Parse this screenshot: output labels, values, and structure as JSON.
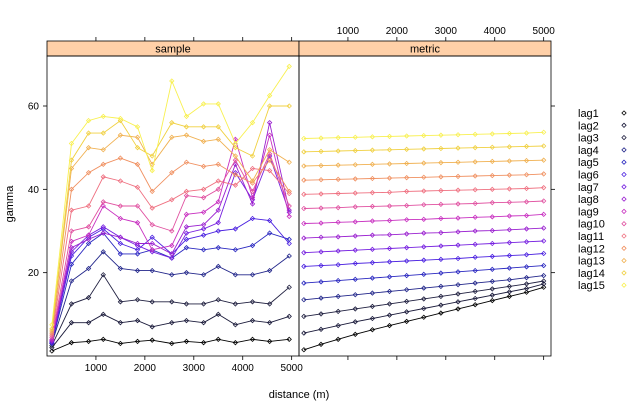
{
  "chart_data": {
    "type": "line",
    "xlabel": "distance (m)",
    "ylabel": "gamma",
    "x_ticks": [
      1000,
      2000,
      3000,
      4000,
      5000
    ],
    "y_ticks": [
      20,
      40,
      60
    ],
    "xlim": [
      0,
      5150
    ],
    "ylim": [
      0,
      72
    ],
    "legend_position": "right",
    "panels": [
      {
        "name": "sample",
        "x": [
          100,
          500,
          850,
          1150,
          1500,
          1850,
          2150,
          2550,
          2850,
          3200,
          3500,
          3850,
          4200,
          4550,
          4950
        ],
        "series": [
          {
            "name": "lag1",
            "color": "#000000",
            "values": [
              1.2,
              3.2,
              3.5,
              4.0,
              3.0,
              3.5,
              3.8,
              3.0,
              3.5,
              3.2,
              4.0,
              3.2,
              4.0,
              3.5,
              4.0
            ]
          },
          {
            "name": "lag2",
            "color": "#1a1a3a",
            "values": [
              2.0,
              8.0,
              8.0,
              10.0,
              8.0,
              8.5,
              7.0,
              8.0,
              8.5,
              8.0,
              10.0,
              7.5,
              8.5,
              8.0,
              9.5
            ]
          },
          {
            "name": "lag3",
            "color": "#202040",
            "values": [
              2.5,
              12.5,
              14.0,
              19.5,
              13.0,
              13.5,
              13.0,
              13.0,
              12.5,
              12.5,
              13.5,
              12.5,
              13.0,
              12.5,
              16.5
            ]
          },
          {
            "name": "lag4",
            "color": "#22268a",
            "values": [
              3.0,
              18.0,
              21.0,
              25.0,
              21.0,
              20.5,
              20.5,
              19.5,
              20.0,
              19.5,
              21.5,
              19.5,
              19.5,
              20.5,
              24.0
            ]
          },
          {
            "name": "lag5",
            "color": "#2a28c0",
            "values": [
              3.0,
              22.0,
              27.0,
              29.5,
              24.5,
              24.5,
              25.5,
              23.5,
              26.0,
              25.5,
              26.0,
              25.5,
              26.5,
              29.5,
              28.0
            ]
          },
          {
            "name": "lag6",
            "color": "#4a20e0",
            "values": [
              3.2,
              24.0,
              28.5,
              30.5,
              27.0,
              25.5,
              28.5,
              24.5,
              28.0,
              29.0,
              30.0,
              30.5,
              33.0,
              32.5,
              27.0
            ]
          },
          {
            "name": "lag7",
            "color": "#7620e0",
            "values": [
              3.5,
              25.0,
              29.0,
              31.0,
              28.5,
              26.5,
              25.0,
              23.5,
              29.5,
              30.5,
              32.0,
              44.0,
              37.5,
              48.0,
              34.5
            ]
          },
          {
            "name": "lag8",
            "color": "#9a20d0",
            "values": [
              3.7,
              26.0,
              28.0,
              29.5,
              28.5,
              27.0,
              27.0,
              24.5,
              31.0,
              31.5,
              35.0,
              46.0,
              36.5,
              56.0,
              35.0
            ]
          },
          {
            "name": "lag9",
            "color": "#c830c0",
            "values": [
              4.0,
              27.5,
              29.0,
              36.0,
              33.0,
              32.0,
              25.5,
              26.5,
              34.0,
              34.5,
              37.0,
              52.0,
              38.0,
              53.0,
              33.5
            ]
          },
          {
            "name": "lag10",
            "color": "#e050a0",
            "values": [
              4.5,
              30.0,
              31.0,
              37.0,
              36.0,
              36.0,
              31.5,
              30.0,
              38.5,
              38.0,
              40.0,
              47.0,
              39.5,
              48.5,
              36.0
            ]
          },
          {
            "name": "lag11",
            "color": "#ef7080",
            "values": [
              5.0,
              35.0,
              36.0,
              43.0,
              42.0,
              40.5,
              35.5,
              37.5,
              39.5,
              40.0,
              42.0,
              41.0,
              45.0,
              44.5,
              39.0
            ]
          },
          {
            "name": "lag12",
            "color": "#f09060",
            "values": [
              5.5,
              40.0,
              44.0,
              46.0,
              47.5,
              46.0,
              39.5,
              44.0,
              46.5,
              45.5,
              46.0,
              43.5,
              41.5,
              47.0,
              39.5
            ]
          },
          {
            "name": "lag13",
            "color": "#f0b050",
            "values": [
              6.0,
              45.0,
              50.0,
              49.5,
              53.0,
              52.5,
              46.0,
              52.5,
              53.0,
              51.5,
              52.0,
              48.0,
              42.0,
              49.5,
              46.5
            ]
          },
          {
            "name": "lag14",
            "color": "#f0d040",
            "values": [
              6.5,
              47.0,
              53.5,
              53.5,
              56.5,
              50.0,
              48.0,
              56.0,
              55.0,
              55.0,
              55.0,
              50.0,
              48.0,
              60.0,
              60.0
            ]
          },
          {
            "name": "lag15",
            "color": "#f8f050",
            "values": [
              7.5,
              51.0,
              56.5,
              57.5,
              57.0,
              55.0,
              44.5,
              66.0,
              57.5,
              60.5,
              60.5,
              51.0,
              56.0,
              62.5,
              69.5
            ]
          }
        ]
      },
      {
        "name": "metric",
        "x": [
          100,
          450,
          800,
          1150,
          1500,
          1850,
          2200,
          2550,
          2900,
          3250,
          3600,
          3950,
          4300,
          4650,
          5000
        ],
        "series": [
          {
            "name": "lag1",
            "color": "#000000",
            "values": [
              1.5,
              2.8,
              4.0,
              5.2,
              6.3,
              7.3,
              8.3,
              9.3,
              10.3,
              11.3,
              12.3,
              13.3,
              14.3,
              15.3,
              16.5
            ]
          },
          {
            "name": "lag2",
            "color": "#1a1a3a",
            "values": [
              5.5,
              6.4,
              7.3,
              8.2,
              9.0,
              9.8,
              10.6,
              11.4,
              12.2,
              13.0,
              13.8,
              14.6,
              15.4,
              16.2,
              17.3
            ]
          },
          {
            "name": "lag3",
            "color": "#202040",
            "values": [
              9.5,
              10.1,
              10.7,
              11.3,
              11.9,
              12.5,
              13.1,
              13.7,
              14.3,
              14.9,
              15.5,
              16.1,
              16.7,
              17.3,
              18.0
            ]
          },
          {
            "name": "lag4",
            "color": "#22268a",
            "values": [
              13.5,
              13.9,
              14.3,
              14.7,
              15.1,
              15.5,
              15.9,
              16.3,
              16.7,
              17.1,
              17.5,
              17.9,
              18.3,
              18.8,
              19.3
            ]
          },
          {
            "name": "lag5",
            "color": "#2a28c0",
            "values": [
              17.5,
              17.8,
              18.1,
              18.4,
              18.7,
              19.0,
              19.3,
              19.6,
              19.9,
              20.2,
              20.5,
              20.8,
              21.1,
              21.4,
              21.7
            ]
          },
          {
            "name": "lag6",
            "color": "#4a20e0",
            "values": [
              21.5,
              21.7,
              21.9,
              22.2,
              22.4,
              22.6,
              22.8,
              23.0,
              23.2,
              23.4,
              23.7,
              23.9,
              24.1,
              24.3,
              24.6
            ]
          },
          {
            "name": "lag7",
            "color": "#7620e0",
            "values": [
              24.8,
              25.0,
              25.2,
              25.4,
              25.6,
              25.8,
              26.0,
              26.2,
              26.4,
              26.6,
              26.8,
              27.0,
              27.2,
              27.4,
              27.6
            ]
          },
          {
            "name": "lag8",
            "color": "#9a20d0",
            "values": [
              28.3,
              28.5,
              28.6,
              28.8,
              29.0,
              29.1,
              29.3,
              29.5,
              29.6,
              29.8,
              30.0,
              30.1,
              30.3,
              30.5,
              30.7
            ]
          },
          {
            "name": "lag9",
            "color": "#c830c0",
            "values": [
              31.8,
              31.9,
              32.1,
              32.2,
              32.4,
              32.5,
              32.7,
              32.8,
              33.0,
              33.1,
              33.3,
              33.4,
              33.6,
              33.7,
              34.0
            ]
          },
          {
            "name": "lag10",
            "color": "#e050a0",
            "values": [
              35.4,
              35.5,
              35.6,
              35.8,
              35.9,
              36.0,
              36.1,
              36.3,
              36.4,
              36.5,
              36.6,
              36.8,
              36.9,
              37.0,
              37.2
            ]
          },
          {
            "name": "lag11",
            "color": "#ef7080",
            "values": [
              38.8,
              38.9,
              39.0,
              39.1,
              39.2,
              39.3,
              39.5,
              39.6,
              39.7,
              39.8,
              39.9,
              40.0,
              40.1,
              40.2,
              40.4
            ]
          },
          {
            "name": "lag12",
            "color": "#f09060",
            "values": [
              42.2,
              42.3,
              42.4,
              42.5,
              42.6,
              42.7,
              42.8,
              42.9,
              43.0,
              43.1,
              43.2,
              43.3,
              43.4,
              43.5,
              43.7
            ]
          },
          {
            "name": "lag13",
            "color": "#f0b050",
            "values": [
              45.6,
              45.7,
              45.8,
              45.9,
              46.0,
              46.1,
              46.2,
              46.3,
              46.4,
              46.5,
              46.6,
              46.7,
              46.8,
              46.9,
              47.0
            ]
          },
          {
            "name": "lag14",
            "color": "#f0d040",
            "values": [
              49.0,
              49.1,
              49.2,
              49.3,
              49.4,
              49.5,
              49.6,
              49.7,
              49.8,
              49.9,
              50.0,
              50.1,
              50.2,
              50.3,
              50.4
            ]
          },
          {
            "name": "lag15",
            "color": "#f8f050",
            "values": [
              52.2,
              52.3,
              52.4,
              52.5,
              52.6,
              52.7,
              52.8,
              52.9,
              53.0,
              53.1,
              53.2,
              53.3,
              53.4,
              53.5,
              53.7
            ]
          }
        ]
      }
    ]
  },
  "colors": {
    "strip_background": "#ffd0a8",
    "frame": "#000000"
  }
}
